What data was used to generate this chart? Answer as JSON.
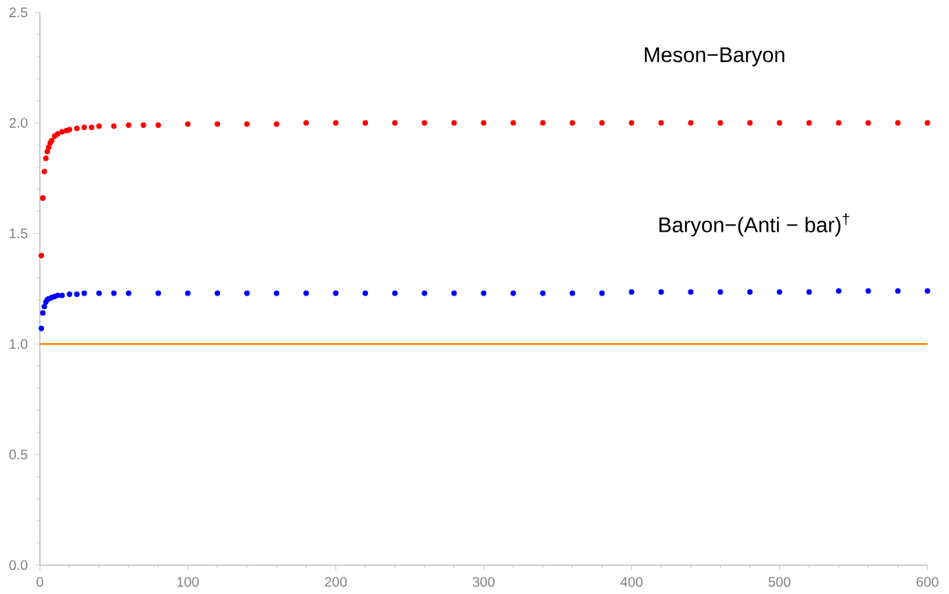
{
  "chart_data": {
    "type": "scatter",
    "series": [
      {
        "name": "Meson−Baryon",
        "color": "#ff0000",
        "x": [
          1,
          2,
          3,
          4,
          5,
          6,
          7,
          8,
          10,
          12,
          15,
          18,
          20,
          25,
          30,
          35,
          40,
          50,
          60,
          70,
          80,
          100,
          120,
          140,
          160,
          180,
          200,
          220,
          240,
          260,
          280,
          300,
          320,
          340,
          360,
          380,
          400,
          420,
          440,
          460,
          480,
          500,
          520,
          540,
          560,
          580,
          600
        ],
        "values": [
          1.4,
          1.66,
          1.78,
          1.84,
          1.87,
          1.89,
          1.91,
          1.92,
          1.94,
          1.95,
          1.96,
          1.965,
          1.97,
          1.975,
          1.98,
          1.98,
          1.985,
          1.985,
          1.99,
          1.99,
          1.99,
          1.995,
          1.995,
          1.995,
          1.995,
          2.0,
          2.0,
          2.0,
          2.0,
          2.0,
          2.0,
          2.0,
          2.0,
          2.0,
          2.0,
          2.0,
          2.0,
          2.0,
          2.0,
          2.0,
          2.0,
          2.0,
          2.0,
          2.0,
          2.0,
          2.0,
          2.0
        ]
      },
      {
        "name": "Baryon−(Anti − bar)$^{†}$",
        "color": "#0000ff",
        "x": [
          1,
          2,
          3,
          4,
          5,
          6,
          8,
          10,
          12,
          15,
          20,
          25,
          30,
          40,
          50,
          60,
          80,
          100,
          120,
          140,
          160,
          180,
          200,
          220,
          240,
          260,
          280,
          300,
          320,
          340,
          360,
          380,
          400,
          420,
          440,
          460,
          480,
          500,
          520,
          540,
          560,
          580,
          600
        ],
        "values": [
          1.07,
          1.14,
          1.17,
          1.19,
          1.2,
          1.205,
          1.21,
          1.215,
          1.22,
          1.22,
          1.225,
          1.225,
          1.23,
          1.23,
          1.23,
          1.23,
          1.23,
          1.23,
          1.23,
          1.23,
          1.23,
          1.23,
          1.23,
          1.23,
          1.23,
          1.23,
          1.23,
          1.23,
          1.23,
          1.23,
          1.23,
          1.23,
          1.235,
          1.235,
          1.235,
          1.235,
          1.235,
          1.235,
          1.235,
          1.24,
          1.24,
          1.24,
          1.24
        ]
      }
    ],
    "ref_lines": [
      {
        "axis": "y",
        "value": 1,
        "color": "#ff8c00"
      }
    ],
    "grid": false,
    "xlim": [
      0,
      600
    ],
    "ylim": [
      0,
      2.5
    ],
    "xticks": [
      0,
      100,
      200,
      300,
      400,
      500,
      600
    ],
    "yticks": [
      {
        "value": 0,
        "label": "0.0"
      },
      {
        "value": 0.5,
        "label": "0.5"
      },
      {
        "value": 1,
        "label": "1.0"
      },
      {
        "value": 1.5,
        "label": "1.5"
      },
      {
        "value": 2,
        "label": "2.0"
      },
      {
        "value": 2.5,
        "label": "2.5"
      }
    ]
  }
}
